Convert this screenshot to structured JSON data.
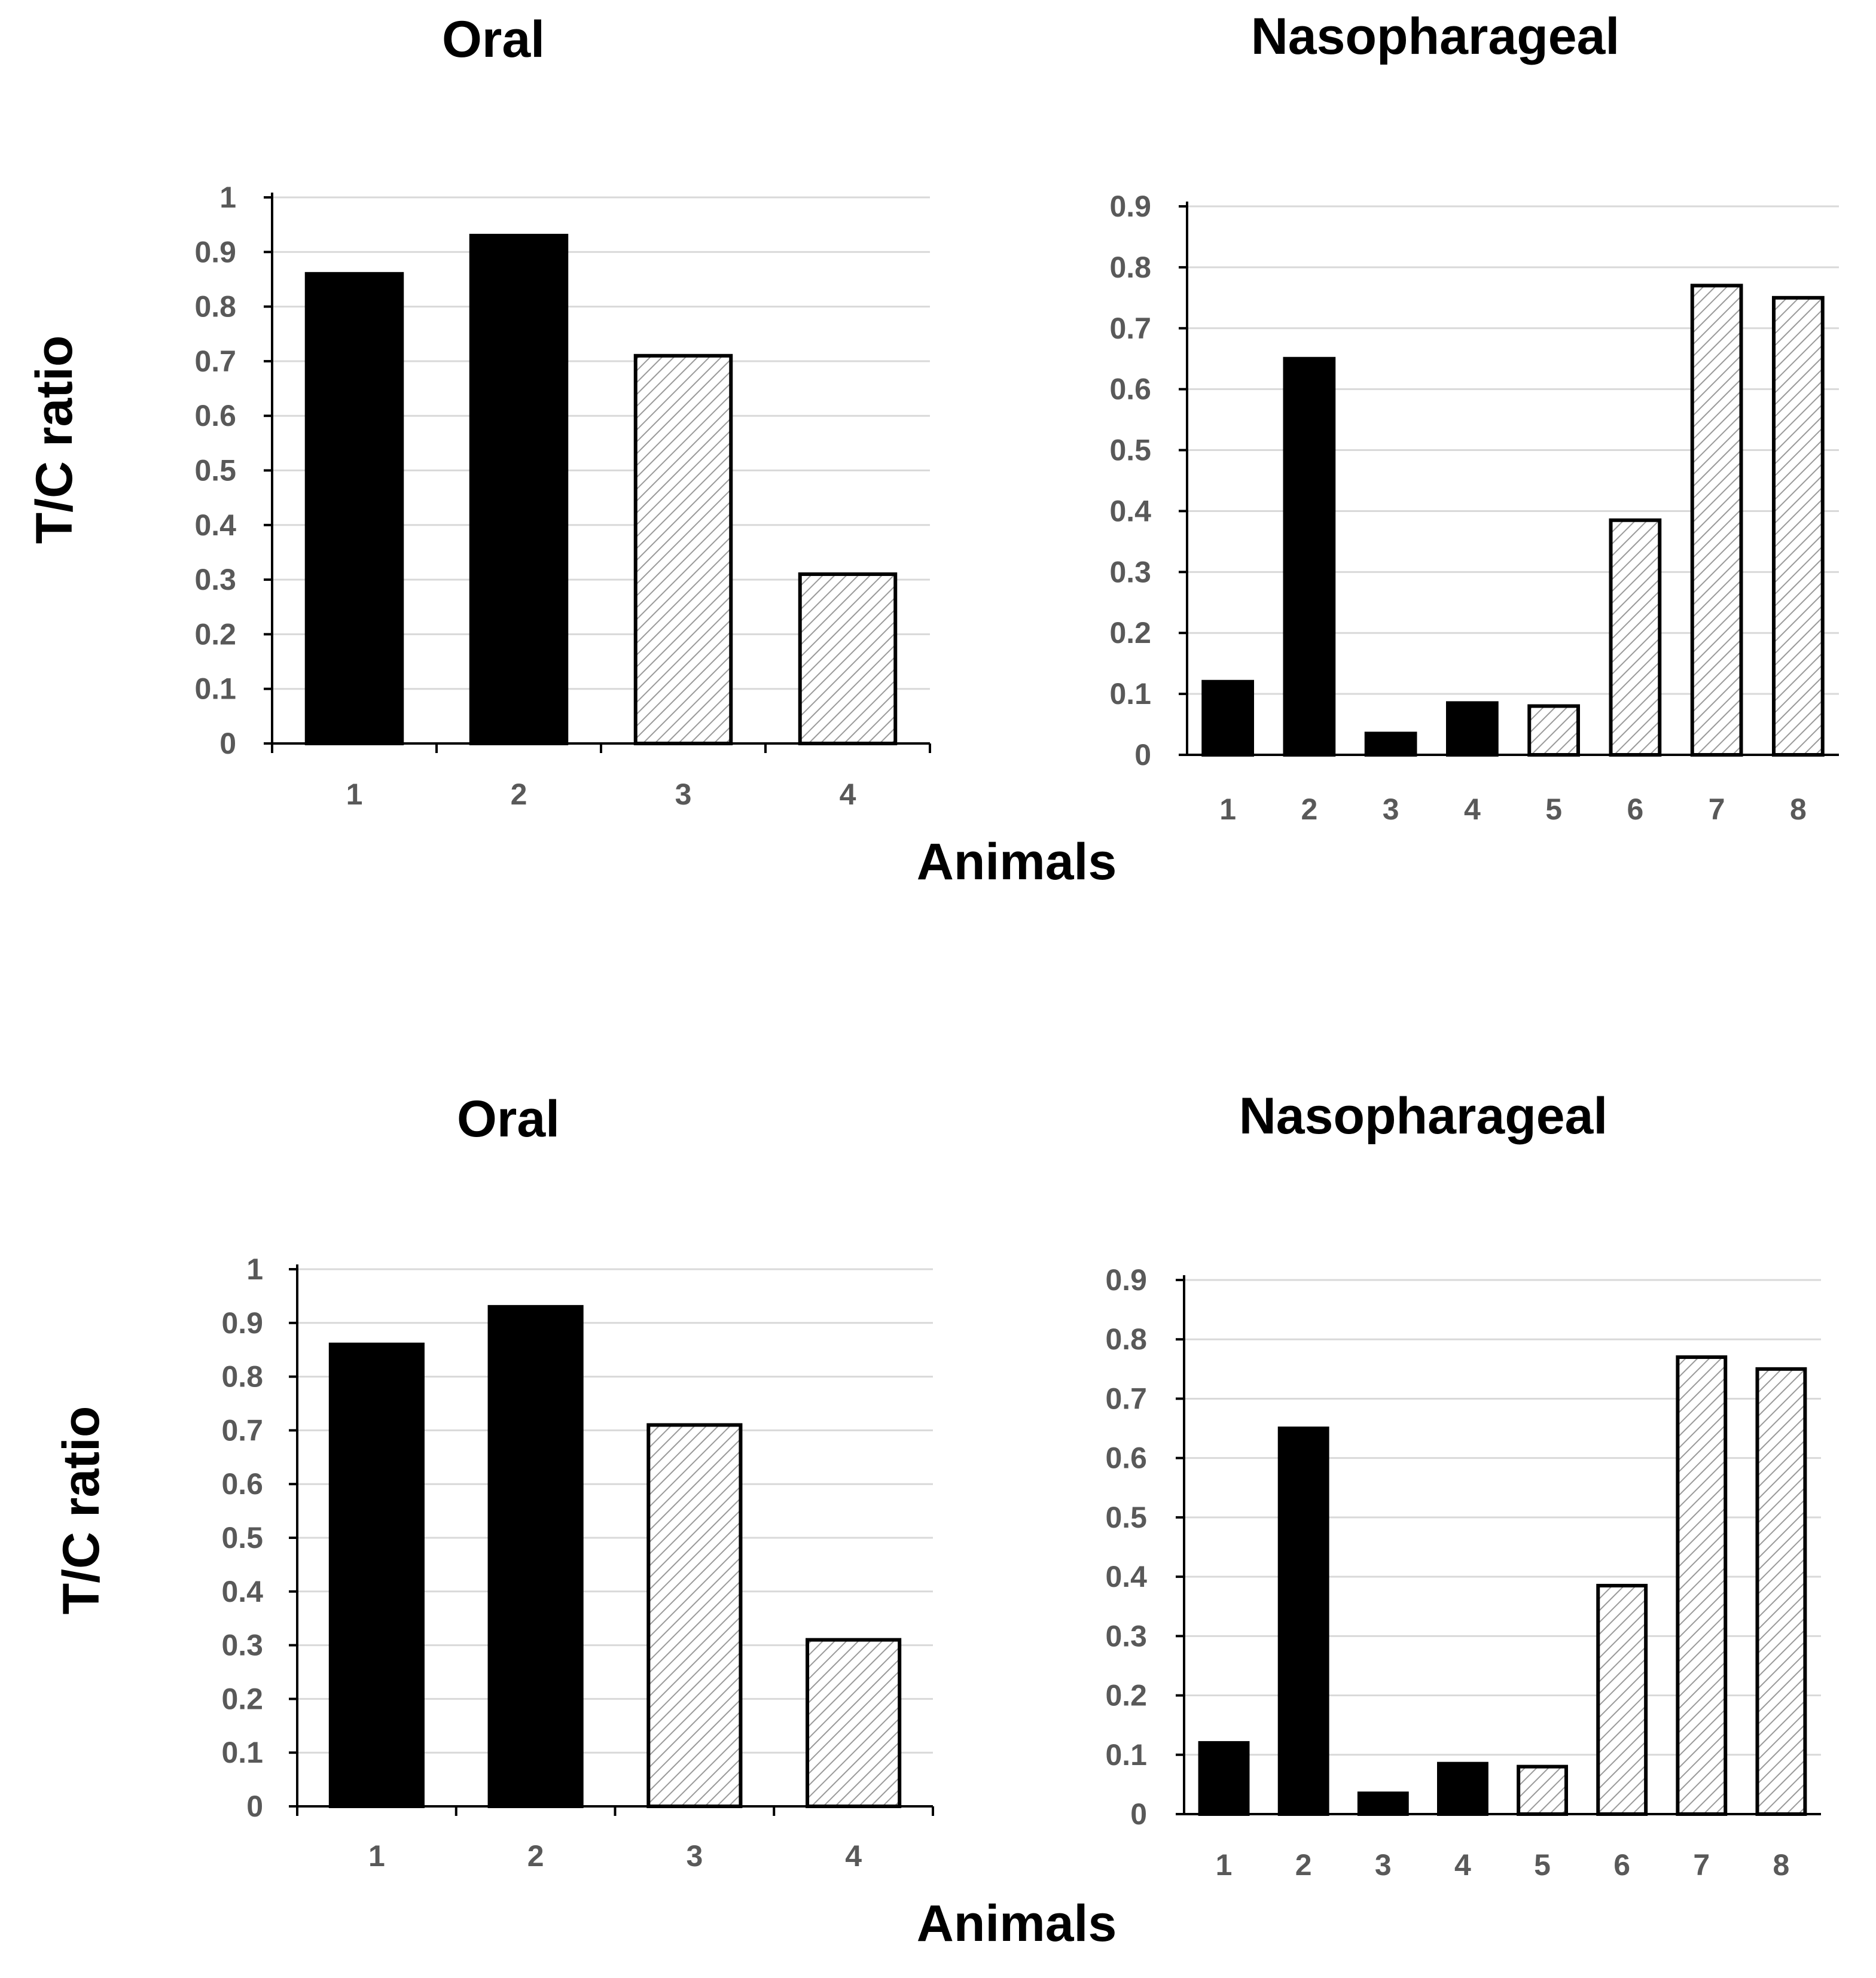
{
  "chart_data": [
    {
      "type": "bar",
      "title": "Oral",
      "xlabel": "",
      "ylabel": "T/C ratio",
      "categories": [
        "1",
        "2",
        "3",
        "4"
      ],
      "values": [
        0.86,
        0.93,
        0.71,
        0.31
      ],
      "fills": [
        "solid",
        "solid",
        "hatched",
        "hatched"
      ],
      "ylim": [
        0,
        1
      ],
      "yticks": [
        "0",
        "0.1",
        "0.2",
        "0.3",
        "0.4",
        "0.5",
        "0.6",
        "0.7",
        "0.8",
        "0.9",
        "1"
      ],
      "grid": true
    },
    {
      "type": "bar",
      "title": "Nasopharageal",
      "xlabel": "Animals",
      "ylabel": "",
      "categories": [
        "1",
        "2",
        "3",
        "4",
        "5",
        "6",
        "7",
        "8"
      ],
      "values": [
        0.12,
        0.65,
        0.035,
        0.085,
        0.08,
        0.385,
        0.77,
        0.75
      ],
      "fills": [
        "solid",
        "solid",
        "solid",
        "solid",
        "hatched",
        "hatched",
        "hatched",
        "hatched"
      ],
      "ylim": [
        0,
        0.9
      ],
      "yticks": [
        "0",
        "0.1",
        "0.2",
        "0.3",
        "0.4",
        "0.5",
        "0.6",
        "0.7",
        "0.8",
        "0.9"
      ],
      "grid": true
    },
    {
      "type": "bar",
      "title": "Oral",
      "xlabel": "",
      "ylabel": "T/C ratio",
      "categories": [
        "1",
        "2",
        "3",
        "4"
      ],
      "values": [
        0.86,
        0.93,
        0.71,
        0.31
      ],
      "fills": [
        "solid",
        "solid",
        "hatched",
        "hatched"
      ],
      "ylim": [
        0,
        1
      ],
      "yticks": [
        "0",
        "0.1",
        "0.2",
        "0.3",
        "0.4",
        "0.5",
        "0.6",
        "0.7",
        "0.8",
        "0.9",
        "1"
      ],
      "grid": true
    },
    {
      "type": "bar",
      "title": "Nasopharageal",
      "xlabel": "Animals",
      "ylabel": "",
      "categories": [
        "1",
        "2",
        "3",
        "4",
        "5",
        "6",
        "7",
        "8"
      ],
      "values": [
        0.12,
        0.65,
        0.035,
        0.085,
        0.08,
        0.385,
        0.77,
        0.75
      ],
      "fills": [
        "solid",
        "solid",
        "solid",
        "solid",
        "hatched",
        "hatched",
        "hatched",
        "hatched"
      ],
      "ylim": [
        0,
        0.9
      ],
      "yticks": [
        "0",
        "0.1",
        "0.2",
        "0.3",
        "0.4",
        "0.5",
        "0.6",
        "0.7",
        "0.8",
        "0.9"
      ],
      "grid": true
    }
  ]
}
